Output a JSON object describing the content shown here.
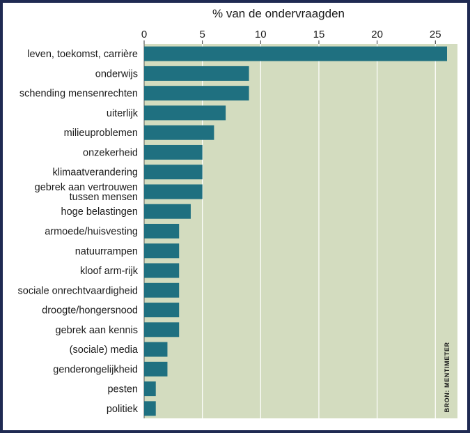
{
  "chart_data": {
    "type": "bar",
    "orientation": "horizontal",
    "title": "% van de ondervraagden",
    "source": "BRON: MENTIMETER",
    "xlim": [
      0,
      27
    ],
    "xticks": [
      0,
      5,
      10,
      15,
      20,
      25
    ],
    "grid": true,
    "bar_color": "#1f7080",
    "plot_background": "#d3dcbf",
    "frame_color": "#1f2a52",
    "categories": [
      [
        "leven, toekomst, carrière"
      ],
      [
        "onderwijs"
      ],
      [
        "schending mensenrechten"
      ],
      [
        "uiterlijk"
      ],
      [
        "milieuproblemen"
      ],
      [
        "onzekerheid"
      ],
      [
        "klimaatverandering"
      ],
      [
        "gebrek aan vertrouwen",
        "tussen mensen"
      ],
      [
        "hoge belastingen"
      ],
      [
        "armoede/huisvesting"
      ],
      [
        "natuurrampen"
      ],
      [
        "kloof arm-rijk"
      ],
      [
        "sociale onrechtvaardigheid"
      ],
      [
        "droogte/hongersnood"
      ],
      [
        "gebrek aan kennis"
      ],
      [
        "(sociale) media"
      ],
      [
        "genderongelijkheid"
      ],
      [
        "pesten"
      ],
      [
        "politiek"
      ]
    ],
    "values": [
      26,
      9,
      9,
      7,
      6,
      5,
      5,
      5,
      4,
      3,
      3,
      3,
      3,
      3,
      3,
      2,
      2,
      1,
      1
    ]
  }
}
